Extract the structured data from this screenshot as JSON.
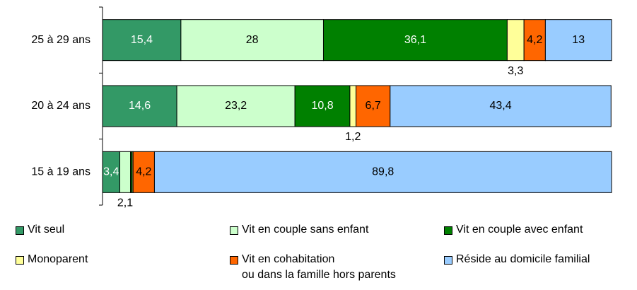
{
  "chart_data": {
    "type": "stacked-bar-horizontal",
    "categories": [
      "25 à 29 ans",
      "20 à 24 ans",
      "15 à 19 ans"
    ],
    "xlim": [
      0,
      100
    ],
    "legend": "bottom",
    "series": [
      {
        "name": "Vit seul",
        "color": "#339966",
        "values": [
          15.4,
          14.6,
          3.4
        ],
        "value_labels": [
          "15,4",
          "14,6",
          "3,4"
        ]
      },
      {
        "name": "Vit en couple sans enfant",
        "color": "#ccffcc",
        "values": [
          28,
          23.2,
          2.1
        ],
        "value_labels": [
          "28",
          "23,2",
          "2,1"
        ]
      },
      {
        "name": "Vit en couple avec enfant",
        "color": "#008000",
        "values": [
          36.1,
          10.8,
          0.3
        ],
        "value_labels": [
          "36,1",
          "10,8",
          null
        ]
      },
      {
        "name": "Monoparent",
        "color": "#ffff99",
        "values": [
          3.3,
          1.2,
          0.2
        ],
        "value_labels": [
          "3,3",
          "1,2",
          null
        ]
      },
      {
        "name": "Vit en cohabitation\nou dans la famille hors parents",
        "color": "#ff6600",
        "values": [
          4.2,
          6.7,
          4.2
        ],
        "value_labels": [
          "4,2",
          "6,7",
          "4,2"
        ]
      },
      {
        "name": "Réside au domicile familial",
        "color": "#99ccff",
        "values": [
          13,
          43.4,
          89.8
        ],
        "value_labels": [
          "13",
          "43,4",
          "89,8"
        ]
      }
    ]
  }
}
